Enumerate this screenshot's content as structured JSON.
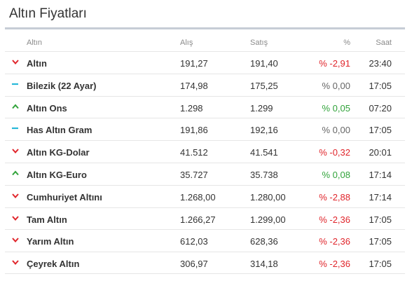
{
  "title": "Altın Fiyatları",
  "headers": {
    "name": "Altın",
    "alis": "Alış",
    "satis": "Satış",
    "pct": "%",
    "saat": "Saat"
  },
  "colors": {
    "down": "#e0252b",
    "up": "#31a33a",
    "flat": "#28b8d8"
  },
  "rows": [
    {
      "name": "Altın",
      "alis": "191,27",
      "satis": "191,40",
      "pct": "% -2,91",
      "saat": "23:40",
      "trend": "down"
    },
    {
      "name": "Bilezik (22 Ayar)",
      "alis": "174,98",
      "satis": "175,25",
      "pct": "% 0,00",
      "saat": "17:05",
      "trend": "flat"
    },
    {
      "name": "Altın Ons",
      "alis": "1.298",
      "satis": "1.299",
      "pct": "% 0,05",
      "saat": "07:20",
      "trend": "up"
    },
    {
      "name": "Has Altın Gram",
      "alis": "191,86",
      "satis": "192,16",
      "pct": "% 0,00",
      "saat": "17:05",
      "trend": "flat"
    },
    {
      "name": "Altın KG-Dolar",
      "alis": "41.512",
      "satis": "41.541",
      "pct": "% -0,32",
      "saat": "20:01",
      "trend": "down"
    },
    {
      "name": "Altın KG-Euro",
      "alis": "35.727",
      "satis": "35.738",
      "pct": "% 0,08",
      "saat": "17:14",
      "trend": "up"
    },
    {
      "name": "Cumhuriyet Altını",
      "alis": "1.268,00",
      "satis": "1.280,00",
      "pct": "% -2,88",
      "saat": "17:14",
      "trend": "down"
    },
    {
      "name": "Tam Altın",
      "alis": "1.266,27",
      "satis": "1.299,00",
      "pct": "% -2,36",
      "saat": "17:05",
      "trend": "down"
    },
    {
      "name": "Yarım Altın",
      "alis": "612,03",
      "satis": "628,36",
      "pct": "% -2,36",
      "saat": "17:05",
      "trend": "down"
    },
    {
      "name": "Çeyrek Altın",
      "alis": "306,97",
      "satis": "314,18",
      "pct": "% -2,36",
      "saat": "17:05",
      "trend": "down"
    }
  ]
}
